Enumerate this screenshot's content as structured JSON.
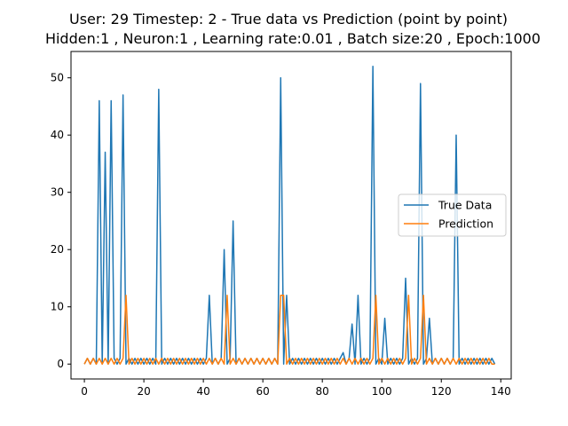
{
  "chart_data": {
    "type": "line",
    "title_line1": "User: 29 Timestep: 2 - True data vs Prediction (point by point)",
    "title_line2": "Hidden:1 , Neuron:1 , Learning rate:0.01 , Batch size:20 , Epoch:1000",
    "xlabel": "",
    "ylabel": "",
    "xlim": [
      -4.5,
      143.5
    ],
    "ylim": [
      -2.6,
      54.6
    ],
    "xticks": [
      0,
      20,
      40,
      60,
      80,
      100,
      120,
      140
    ],
    "yticks": [
      0,
      10,
      20,
      30,
      40,
      50
    ],
    "grid": false,
    "legend_position": "center-right",
    "series": [
      {
        "name": "True Data",
        "color": "#1f77b4",
        "x": [
          0,
          1,
          2,
          3,
          4,
          5,
          6,
          7,
          8,
          9,
          10,
          11,
          12,
          13,
          14,
          15,
          16,
          17,
          18,
          19,
          20,
          21,
          22,
          23,
          24,
          25,
          26,
          27,
          28,
          29,
          30,
          31,
          32,
          33,
          34,
          35,
          36,
          37,
          38,
          39,
          40,
          41,
          42,
          43,
          44,
          45,
          46,
          47,
          48,
          49,
          50,
          51,
          52,
          53,
          54,
          55,
          56,
          57,
          58,
          59,
          60,
          61,
          62,
          63,
          64,
          65,
          66,
          67,
          68,
          69,
          70,
          71,
          72,
          73,
          74,
          75,
          76,
          77,
          78,
          79,
          80,
          81,
          82,
          83,
          84,
          85,
          86,
          87,
          88,
          89,
          90,
          91,
          92,
          93,
          94,
          95,
          96,
          97,
          98,
          99,
          100,
          101,
          102,
          103,
          104,
          105,
          106,
          107,
          108,
          109,
          110,
          111,
          112,
          113,
          114,
          115,
          116,
          117,
          118,
          119,
          120,
          121,
          122,
          123,
          124,
          125,
          126,
          127,
          128,
          129,
          130,
          131,
          132,
          133,
          134,
          135,
          136,
          137,
          138
        ],
        "y": [
          0,
          1,
          0,
          1,
          0,
          46,
          0,
          37,
          0,
          46,
          1,
          0,
          1,
          47,
          0,
          1,
          0,
          1,
          0,
          1,
          0,
          1,
          0,
          1,
          0,
          48,
          0,
          1,
          0,
          1,
          0,
          1,
          0,
          1,
          0,
          1,
          0,
          1,
          0,
          1,
          0,
          1,
          12,
          0,
          1,
          0,
          1,
          20,
          0,
          1,
          25,
          0,
          1,
          0,
          1,
          0,
          1,
          0,
          1,
          0,
          1,
          0,
          1,
          0,
          1,
          0,
          50,
          0,
          12,
          0,
          1,
          0,
          1,
          0,
          1,
          0,
          1,
          0,
          1,
          0,
          1,
          0,
          1,
          0,
          1,
          0,
          1,
          2,
          0,
          1,
          7,
          0,
          12,
          0,
          1,
          0,
          1,
          52,
          0,
          1,
          0,
          8,
          0,
          1,
          0,
          1,
          0,
          1,
          15,
          0,
          1,
          0,
          1,
          49,
          0,
          1,
          8,
          0,
          1,
          0,
          1,
          0,
          1,
          0,
          1,
          40,
          0,
          1,
          0,
          1,
          0,
          1,
          0,
          1,
          0,
          1,
          0,
          1,
          0
        ]
      },
      {
        "name": "Prediction",
        "color": "#ff7f0e",
        "x": [
          0,
          1,
          2,
          3,
          4,
          5,
          6,
          7,
          8,
          9,
          10,
          11,
          12,
          13,
          14,
          15,
          16,
          17,
          18,
          19,
          20,
          21,
          22,
          23,
          24,
          25,
          26,
          27,
          28,
          29,
          30,
          31,
          32,
          33,
          34,
          35,
          36,
          37,
          38,
          39,
          40,
          41,
          42,
          43,
          44,
          45,
          46,
          47,
          48,
          49,
          50,
          51,
          52,
          53,
          54,
          55,
          56,
          57,
          58,
          59,
          60,
          61,
          62,
          63,
          64,
          65,
          66,
          67,
          68,
          69,
          70,
          71,
          72,
          73,
          74,
          75,
          76,
          77,
          78,
          79,
          80,
          81,
          82,
          83,
          84,
          85,
          86,
          87,
          88,
          89,
          90,
          91,
          92,
          93,
          94,
          95,
          96,
          97,
          98,
          99,
          100,
          101,
          102,
          103,
          104,
          105,
          106,
          107,
          108,
          109,
          110,
          111,
          112,
          113,
          114,
          115,
          116,
          117,
          118,
          119,
          120,
          121,
          122,
          123,
          124,
          125,
          126,
          127,
          128,
          129,
          130,
          131,
          132,
          133,
          134,
          135,
          136,
          137,
          138
        ],
        "y": [
          0,
          1,
          0,
          1,
          0,
          1,
          0,
          1,
          0,
          1,
          0,
          1,
          0,
          1,
          12,
          0,
          1,
          0,
          1,
          0,
          1,
          0,
          1,
          0,
          1,
          0,
          1,
          0,
          1,
          0,
          1,
          0,
          1,
          0,
          1,
          0,
          1,
          0,
          1,
          0,
          1,
          0,
          1,
          0,
          1,
          0,
          1,
          0,
          12,
          0,
          1,
          0,
          1,
          0,
          1,
          0,
          1,
          0,
          1,
          0,
          1,
          0,
          1,
          0,
          1,
          0,
          12,
          12,
          0,
          1,
          0,
          1,
          0,
          1,
          0,
          1,
          0,
          1,
          0,
          1,
          0,
          1,
          0,
          1,
          0,
          1,
          0,
          1,
          0,
          1,
          0,
          1,
          0,
          1,
          0,
          1,
          0,
          1,
          12,
          0,
          1,
          0,
          1,
          0,
          1,
          0,
          1,
          0,
          1,
          12,
          0,
          1,
          0,
          1,
          12,
          0,
          1,
          0,
          1,
          0,
          1,
          0,
          1,
          0,
          1,
          0,
          1,
          0,
          1,
          0,
          1,
          0,
          1,
          0,
          1,
          0,
          1,
          0,
          0
        ]
      }
    ]
  }
}
